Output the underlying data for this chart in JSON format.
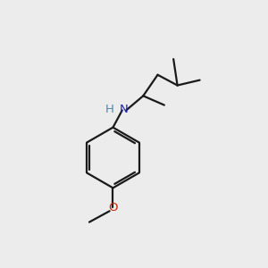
{
  "bg_color": "#ececec",
  "bond_color": "#1a1a1a",
  "N_color": "#2222bb",
  "O_color": "#cc2200",
  "line_width": 1.6,
  "font_size_atom": 9.5,
  "fig_bg": "#ececec",
  "xlim": [
    0,
    10
  ],
  "ylim": [
    0,
    10
  ]
}
